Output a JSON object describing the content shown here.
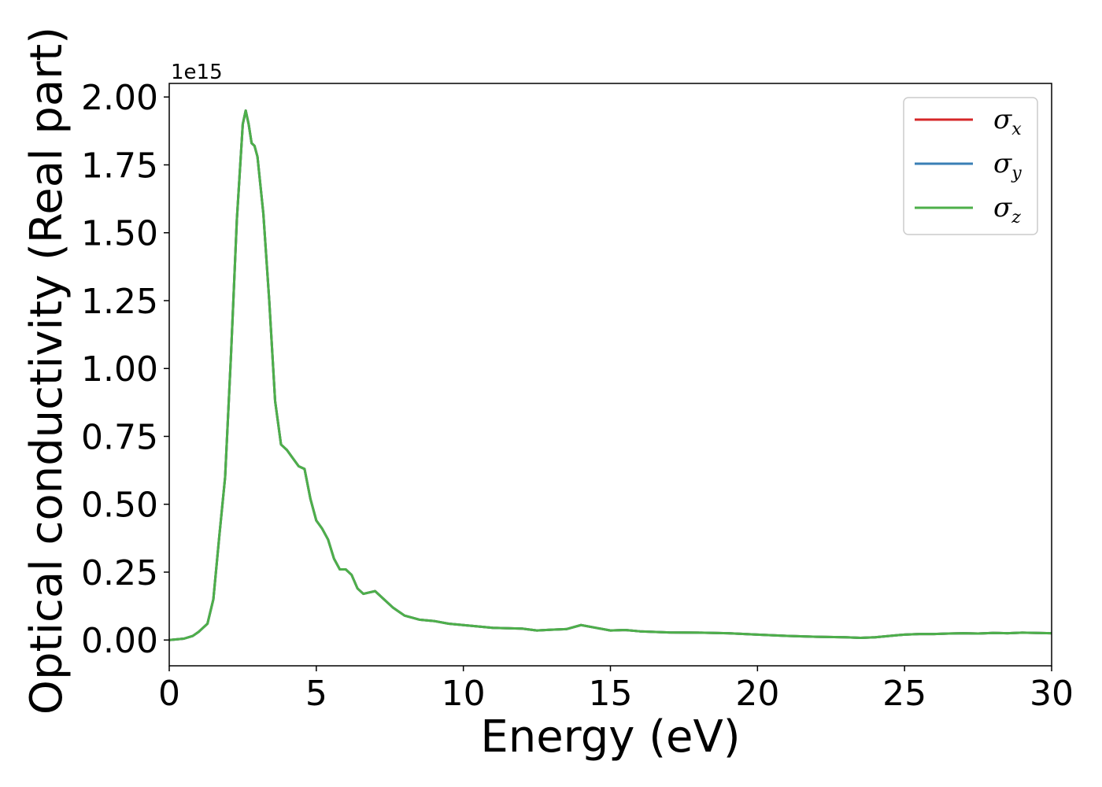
{
  "chart_data": {
    "type": "line",
    "xlabel": "Energy (eV)",
    "ylabel": "Optical conductivity (Real part)",
    "y_offset_text": "1e15",
    "y_multiplier": 1000000000000000.0,
    "xlim": [
      0,
      30
    ],
    "ylim": [
      -0.095,
      2.05
    ],
    "x_ticks": [
      0,
      5,
      10,
      15,
      20,
      25,
      30
    ],
    "x_tick_labels": [
      "0",
      "5",
      "10",
      "15",
      "20",
      "25",
      "30"
    ],
    "y_ticks": [
      0.0,
      0.25,
      0.5,
      0.75,
      1.0,
      1.25,
      1.5,
      1.75,
      2.0
    ],
    "y_tick_labels": [
      "0.00",
      "0.25",
      "0.50",
      "0.75",
      "1.00",
      "1.25",
      "1.50",
      "1.75",
      "2.00"
    ],
    "grid": false,
    "legend_position": "top-right",
    "x": [
      0,
      0.5,
      0.8,
      1.0,
      1.3,
      1.5,
      1.7,
      1.9,
      2.1,
      2.3,
      2.5,
      2.6,
      2.7,
      2.8,
      2.9,
      3.0,
      3.2,
      3.4,
      3.6,
      3.8,
      4.0,
      4.2,
      4.4,
      4.6,
      4.8,
      5.0,
      5.2,
      5.4,
      5.6,
      5.8,
      6.0,
      6.2,
      6.4,
      6.6,
      6.8,
      7.0,
      7.3,
      7.6,
      8.0,
      8.5,
      9.0,
      9.5,
      10.0,
      11.0,
      12.0,
      12.5,
      13.0,
      13.5,
      14.0,
      14.5,
      15.0,
      15.5,
      16.0,
      17.0,
      18.0,
      19.0,
      20.0,
      21.0,
      22.0,
      23.0,
      23.5,
      24.0,
      24.5,
      25.0,
      25.5,
      26.0,
      26.5,
      27.0,
      27.5,
      28.0,
      28.5,
      29.0,
      29.5,
      30.0
    ],
    "series": [
      {
        "name": "σ_x",
        "label_base": "σ",
        "label_sub": "x",
        "color": "#d62728",
        "y": [
          0.0,
          0.005,
          0.015,
          0.03,
          0.06,
          0.15,
          0.38,
          0.6,
          1.05,
          1.55,
          1.9,
          1.95,
          1.9,
          1.83,
          1.82,
          1.78,
          1.57,
          1.25,
          0.88,
          0.72,
          0.7,
          0.67,
          0.64,
          0.63,
          0.52,
          0.44,
          0.41,
          0.37,
          0.3,
          0.26,
          0.26,
          0.24,
          0.19,
          0.17,
          0.175,
          0.18,
          0.15,
          0.12,
          0.09,
          0.075,
          0.07,
          0.06,
          0.055,
          0.045,
          0.042,
          0.035,
          0.038,
          0.04,
          0.055,
          0.045,
          0.035,
          0.037,
          0.032,
          0.028,
          0.027,
          0.025,
          0.02,
          0.015,
          0.012,
          0.01,
          0.008,
          0.01,
          0.015,
          0.02,
          0.022,
          0.022,
          0.024,
          0.025,
          0.024,
          0.026,
          0.025,
          0.027,
          0.026,
          0.025
        ]
      },
      {
        "name": "σ_y",
        "label_base": "σ",
        "label_sub": "y",
        "color": "#3a7fb5",
        "y": [
          0.0,
          0.005,
          0.015,
          0.03,
          0.06,
          0.15,
          0.38,
          0.6,
          1.05,
          1.55,
          1.9,
          1.95,
          1.9,
          1.83,
          1.82,
          1.78,
          1.57,
          1.25,
          0.88,
          0.72,
          0.7,
          0.67,
          0.64,
          0.63,
          0.52,
          0.44,
          0.41,
          0.37,
          0.3,
          0.26,
          0.26,
          0.24,
          0.19,
          0.17,
          0.175,
          0.18,
          0.15,
          0.12,
          0.09,
          0.075,
          0.07,
          0.06,
          0.055,
          0.045,
          0.042,
          0.035,
          0.038,
          0.04,
          0.055,
          0.045,
          0.035,
          0.037,
          0.032,
          0.028,
          0.027,
          0.025,
          0.02,
          0.015,
          0.012,
          0.01,
          0.008,
          0.01,
          0.015,
          0.02,
          0.022,
          0.022,
          0.024,
          0.025,
          0.024,
          0.026,
          0.025,
          0.027,
          0.026,
          0.025
        ]
      },
      {
        "name": "σ_z",
        "label_base": "σ",
        "label_sub": "z",
        "color": "#4daf4a",
        "y": [
          0.0,
          0.005,
          0.015,
          0.03,
          0.06,
          0.15,
          0.38,
          0.6,
          1.05,
          1.55,
          1.9,
          1.95,
          1.9,
          1.83,
          1.82,
          1.78,
          1.57,
          1.25,
          0.88,
          0.72,
          0.7,
          0.67,
          0.64,
          0.63,
          0.52,
          0.44,
          0.41,
          0.37,
          0.3,
          0.26,
          0.26,
          0.24,
          0.19,
          0.17,
          0.175,
          0.18,
          0.15,
          0.12,
          0.09,
          0.075,
          0.07,
          0.06,
          0.055,
          0.045,
          0.042,
          0.035,
          0.038,
          0.04,
          0.055,
          0.045,
          0.035,
          0.037,
          0.032,
          0.028,
          0.027,
          0.025,
          0.02,
          0.015,
          0.012,
          0.01,
          0.008,
          0.01,
          0.015,
          0.02,
          0.022,
          0.022,
          0.024,
          0.025,
          0.024,
          0.026,
          0.025,
          0.027,
          0.026,
          0.025
        ]
      }
    ]
  }
}
